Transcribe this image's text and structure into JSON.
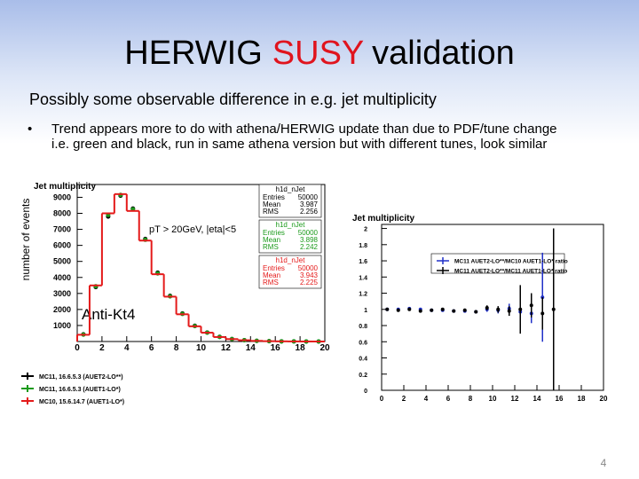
{
  "title": [
    "HERWIG",
    "SUSY",
    "validation"
  ],
  "subtitle": "Possibly some observable difference in e.g. jet multiplicity",
  "bullets": [
    {
      "text": "Trend appears more to do with athena/HERWIG update than due to PDF/tune change",
      "sub": "i.e. green and black, run in same athena version but with different tunes, look similar"
    }
  ],
  "page_number": "4",
  "chart_data": [
    {
      "type": "histogram",
      "title": "Jet multiplicity",
      "y_label": "number of events",
      "annotations": [
        "pT > 20GeV, |eta|<5",
        "Anti-Kt4"
      ],
      "bins": [
        0,
        1,
        2,
        3,
        4,
        5,
        6,
        7,
        8,
        9,
        10,
        11,
        12,
        13,
        14,
        15,
        16,
        17,
        18,
        19,
        20
      ],
      "xlim": [
        0,
        20
      ],
      "ylim": [
        0,
        9800
      ],
      "xticks": [
        0,
        2,
        4,
        6,
        8,
        10,
        12,
        14,
        16,
        18,
        20
      ],
      "yticks": [
        1000,
        2000,
        3000,
        4000,
        5000,
        6000,
        7000,
        8000,
        9000
      ],
      "stats_labels": [
        "Entries",
        "Mean",
        "RMS"
      ],
      "series": [
        {
          "name": "MC11, 16.6.5.3 (AUET2-LO**)",
          "color": "#000000",
          "draw": "markers",
          "stats_name": "h1d_nJet",
          "stats": [
            50000,
            3.987,
            2.256
          ],
          "values": [
            450,
            3400,
            7800,
            9100,
            8300,
            6400,
            4300,
            2850,
            1750,
            980,
            560,
            290,
            155,
            82,
            42,
            21,
            10,
            5,
            2,
            1
          ]
        },
        {
          "name": "MC11, 16.6.5.3 (AUET1-LO*)",
          "color": "#1a9a1a",
          "draw": "markers",
          "stats_name": "h1d_nJet",
          "stats": [
            50000,
            3.898,
            2.242
          ],
          "values": [
            430,
            3450,
            7900,
            9150,
            8250,
            6350,
            4250,
            2820,
            1720,
            960,
            555,
            285,
            152,
            81,
            41,
            20,
            10,
            5,
            2,
            1
          ]
        },
        {
          "name": "MC10, 15.6.14.7 (AUET1-LO*)",
          "color": "#e41a1a",
          "draw": "step",
          "stats_name": "h1d_nJet",
          "stats": [
            50000,
            3.943,
            2.225
          ],
          "values": [
            420,
            3500,
            8000,
            9200,
            8150,
            6300,
            4200,
            2800,
            1700,
            950,
            550,
            280,
            150,
            80,
            40,
            20,
            10,
            5,
            2,
            1
          ]
        }
      ]
    },
    {
      "type": "scatter",
      "title": "Jet multiplicity",
      "x": [
        0.5,
        1.5,
        2.5,
        3.5,
        4.5,
        5.5,
        6.5,
        7.5,
        8.5,
        9.5,
        10.5,
        11.5,
        12.5,
        13.5,
        14.5,
        15.5
      ],
      "xlim": [
        0,
        20
      ],
      "ylim": [
        0,
        2.05
      ],
      "xticks": [
        0,
        2,
        4,
        6,
        8,
        10,
        12,
        14,
        16,
        18,
        20
      ],
      "yticks": [
        0,
        0.2,
        0.4,
        0.6,
        0.8,
        1,
        1.2,
        1.4,
        1.6,
        1.8,
        2
      ],
      "series": [
        {
          "name": "MC11 AUET2-LO**/MC10 AUET1-LO* ratio",
          "color": "#2030c8",
          "values": [
            1.0,
            1.0,
            1.01,
            1.0,
            0.99,
            0.99,
            0.98,
            0.98,
            0.97,
            1.0,
            0.99,
            1.01,
            0.97,
            0.95,
            1.15,
            null
          ],
          "errors": [
            0.01,
            0.01,
            0.01,
            0.01,
            0.01,
            0.01,
            0.01,
            0.02,
            0.02,
            0.03,
            0.04,
            0.06,
            0.08,
            0.12,
            0.55,
            null
          ]
        },
        {
          "name": "MC11 AUET2-LO**/MC11 AUET1-LO* ratio",
          "color": "#000000",
          "values": [
            1.0,
            0.99,
            1.0,
            0.98,
            0.99,
            1.0,
            0.98,
            0.99,
            0.97,
            1.02,
            1.0,
            0.98,
            1.0,
            1.05,
            0.95,
            1.0
          ],
          "errors": [
            0.01,
            0.01,
            0.01,
            0.01,
            0.01,
            0.01,
            0.01,
            0.02,
            0.02,
            0.03,
            0.04,
            0.06,
            0.3,
            0.15,
            0.2,
            1.0
          ]
        }
      ]
    }
  ]
}
